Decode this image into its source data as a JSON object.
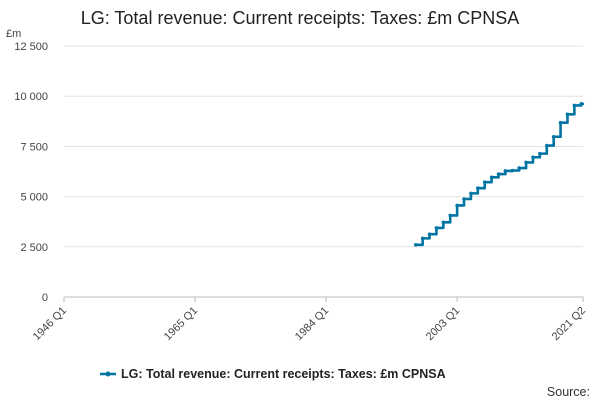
{
  "chart_data": {
    "type": "line",
    "title": "LG: Total revenue: Current receipts: Taxes: £m CPNSA",
    "ylabel": "£m",
    "xlabel": "",
    "ylim": [
      0,
      12500
    ],
    "yticks": [
      0,
      2500,
      5000,
      7500,
      10000,
      12500
    ],
    "ytick_labels": [
      "0",
      "2 500",
      "5 000",
      "7 500",
      "10 000",
      "12 500"
    ],
    "xlim": [
      1946.0,
      2021.25
    ],
    "xticks": [
      1946.0,
      1965.0,
      1984.0,
      2003.0,
      2021.25
    ],
    "xtick_labels": [
      "1946 Q1",
      "1965 Q1",
      "1984 Q1",
      "2003 Q1",
      "2021 Q2"
    ],
    "grid": true,
    "legend_position": "bottom",
    "source_label": "Source:",
    "series": [
      {
        "name": "LG: Total revenue: Current receipts: Taxes: £m CPNSA",
        "color": "#0075a3",
        "x": [
          1997.0,
          1998.0,
          1999.0,
          2000.0,
          2001.0,
          2002.0,
          2003.0,
          2004.0,
          2005.0,
          2006.0,
          2007.0,
          2008.0,
          2009.0,
          2010.0,
          2011.0,
          2012.0,
          2013.0,
          2014.0,
          2015.0,
          2016.0,
          2017.0,
          2018.0,
          2019.0,
          2020.0,
          2021.0
        ],
        "values": [
          2600,
          2920,
          3130,
          3440,
          3720,
          4060,
          4560,
          4880,
          5160,
          5420,
          5720,
          5960,
          6120,
          6280,
          6300,
          6420,
          6700,
          6960,
          7140,
          7540,
          7980,
          8680,
          9100,
          9540,
          9620
        ]
      }
    ]
  }
}
